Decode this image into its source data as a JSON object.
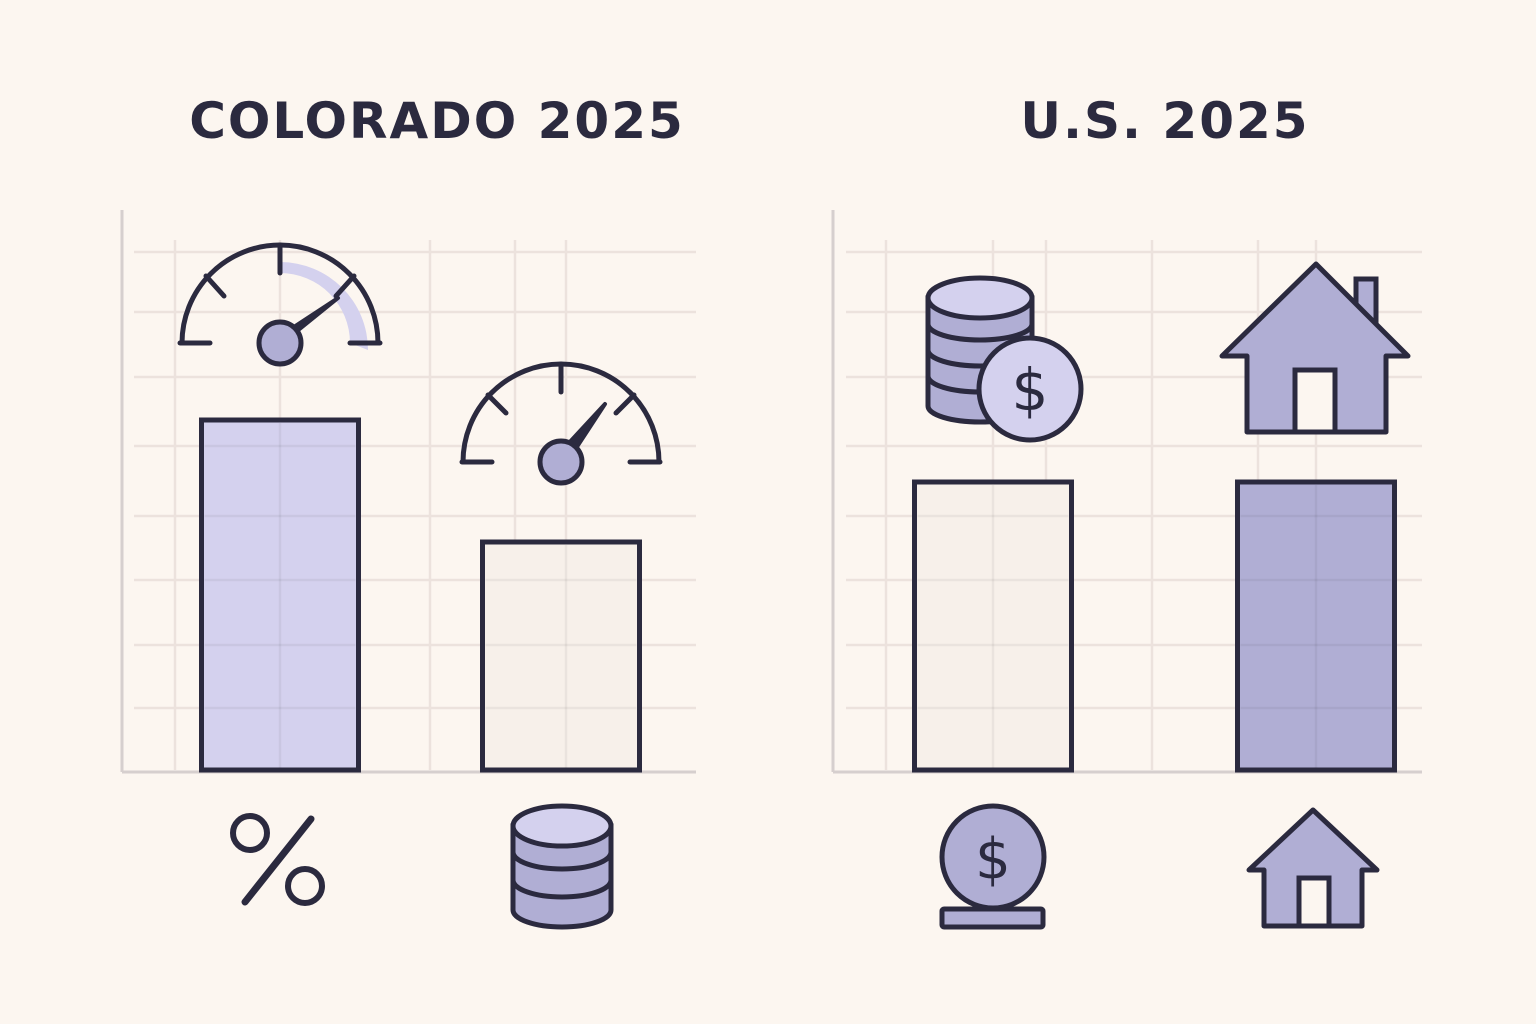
{
  "colors": {
    "background": "#fcf6f0",
    "ink": "#2b2a3f",
    "grid": "#ece2dd",
    "light_lavender": "#d4d1ee",
    "medium_lavender": "#b0aed4",
    "cream": "#f7f0ea"
  },
  "chart_data": [
    {
      "type": "bar",
      "title": "COLORADO 2025",
      "categories": [
        "percent-icon",
        "coin-stack-icon"
      ],
      "values": [
        350,
        228
      ],
      "ylim": [
        0,
        560
      ],
      "grid": true,
      "category_icons": [
        "percent-icon",
        "coin-stack-icon"
      ],
      "bar_top_icons": [
        "gauge-icon",
        "gauge-icon"
      ],
      "bar_colors": [
        "#d4d1ee",
        "#f7f0ea"
      ]
    },
    {
      "type": "bar",
      "title": "U.S. 2025",
      "categories": [
        "dollar-coin-icon",
        "house-icon"
      ],
      "values": [
        288,
        288
      ],
      "ylim": [
        0,
        560
      ],
      "grid": true,
      "category_icons": [
        "dollar-coin-icon",
        "house-icon"
      ],
      "bar_top_icons": [
        "coins-dollar-icon",
        "house-icon"
      ],
      "bar_colors": [
        "#f7f0ea",
        "#b0aed4"
      ]
    }
  ]
}
